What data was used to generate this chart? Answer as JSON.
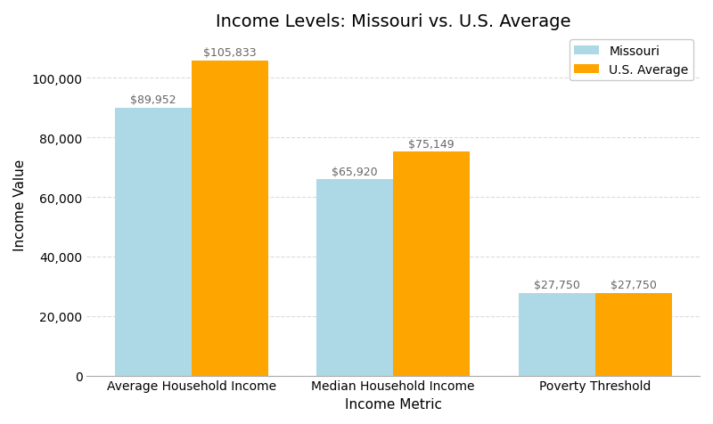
{
  "title": "Income Levels: Missouri vs. U.S. Average",
  "xlabel": "Income Metric",
  "ylabel": "Income Value",
  "categories": [
    "Average Household Income",
    "Median Household Income",
    "Poverty Threshold"
  ],
  "missouri_values": [
    89952,
    65920,
    27750
  ],
  "us_values": [
    105833,
    75149,
    27750
  ],
  "missouri_color": "#ADD8E6",
  "us_color": "#FFA500",
  "bar_width": 0.38,
  "ylim": [
    0,
    115000
  ],
  "background_color": "#FFFFFF",
  "plot_bg_color": "#FFFFFF",
  "grid_color": "#CCCCCC",
  "legend_labels": [
    "Missouri",
    "U.S. Average"
  ],
  "title_fontsize": 14,
  "label_fontsize": 11,
  "tick_fontsize": 10,
  "annotation_fontsize": 9,
  "annotation_color": "#666666"
}
